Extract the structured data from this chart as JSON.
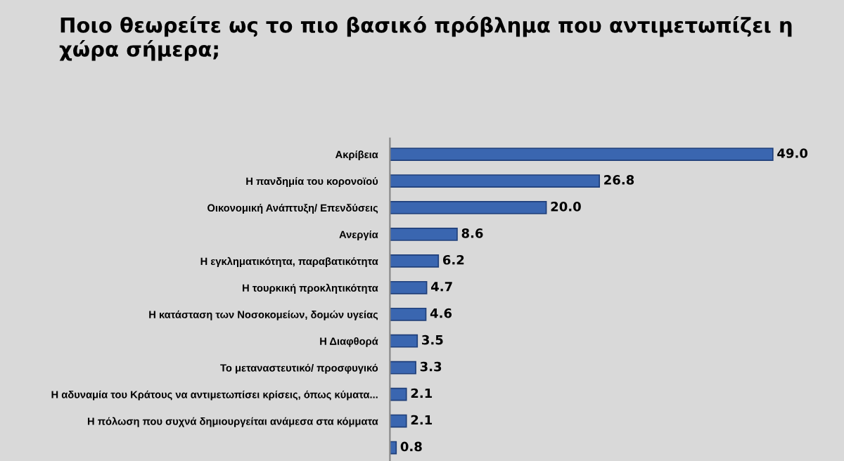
{
  "chart_data": {
    "type": "bar",
    "orientation": "horizontal",
    "title": "Ποιο θεωρείτε ως το πιο βασικό πρόβλημα που αντιμετωπίζει η χώρα σήμερα;",
    "categories": [
      "Ακρίβεια",
      "Η πανδημία του κορονοϊού",
      "Οικονομική Ανάπτυξη/ Επενδύσεις",
      "Ανεργία",
      "Η εγκληματικότητα, παραβατικότητα",
      "Η τουρκική προκλητικότητα",
      "Η κατάσταση των Νοσοκομείων, δομών υγείας",
      "Η Διαφθορά",
      "Το μεταναστευτικό/ προσφυγικό",
      "Η αδυναμία του Κράτους να αντιμετωπίσει κρίσεις, όπως κύματα...",
      "Η πόλωση που συχνά δημιουργείται ανάμεσα στα κόμματα",
      null
    ],
    "values": [
      49.0,
      26.8,
      20.0,
      8.6,
      6.2,
      4.7,
      4.6,
      3.5,
      3.3,
      2.1,
      2.1,
      0.8
    ],
    "value_labels": [
      "49.0",
      "26.8",
      "20.0",
      "8.6",
      "6.2",
      "4.7",
      "4.6",
      "3.5",
      "3.3",
      "2.1",
      "2.1",
      "0.8"
    ],
    "color": "#3a66b0",
    "grid": false,
    "legend": false
  }
}
